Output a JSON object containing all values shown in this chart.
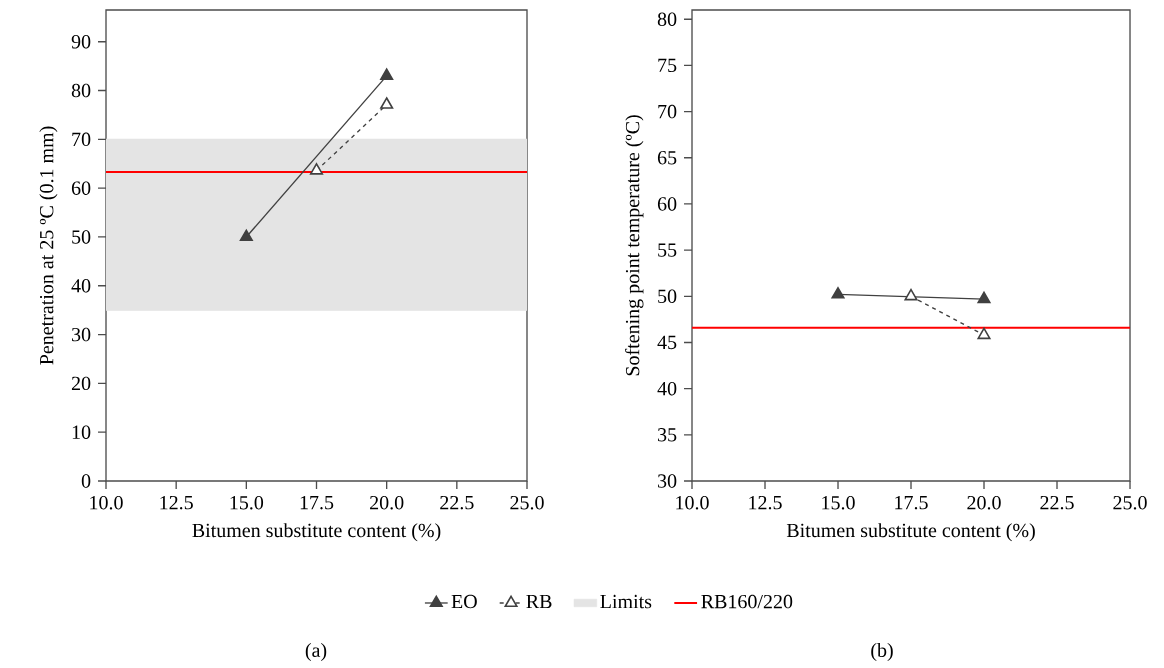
{
  "chart_data": [
    {
      "type": "line",
      "xlabel": "Bitumen substitute content (%)",
      "ylabel": "Penetration at 25 ºC (0.1 mm)",
      "xlim": [
        10,
        25
      ],
      "ylim": [
        0,
        96.5
      ],
      "xticks": [
        {
          "value": 10,
          "label": "10.0"
        },
        {
          "value": 12.5,
          "label": "12.5"
        },
        {
          "value": 15,
          "label": "15.0"
        },
        {
          "value": 17.5,
          "label": "17.5"
        },
        {
          "value": 20,
          "label": "20.0"
        },
        {
          "value": 22.5,
          "label": "22.5"
        },
        {
          "value": 25,
          "label": "25.0"
        }
      ],
      "yticks": [
        0,
        10,
        20,
        30,
        40,
        50,
        60,
        70,
        80,
        90
      ],
      "marker": "triangle",
      "legend": "bottom",
      "series": [
        {
          "name": "EO",
          "color": "#404040",
          "x": [
            15,
            20
          ],
          "values": [
            50,
            83
          ],
          "line_style": "solid"
        },
        {
          "name": "RB",
          "color": "#404040",
          "x": [
            17.5,
            20
          ],
          "values": [
            63.6,
            77.1
          ],
          "line_style": "dashed"
        }
      ],
      "bands": [
        {
          "axis": "y",
          "from": 35,
          "to": 70,
          "label": "Limits",
          "color": "#e4e4e4"
        }
      ],
      "ref_lines": [
        {
          "axis": "y",
          "value": 63.3,
          "label": "RB160/220",
          "color": "#ff0000"
        }
      ],
      "annotations": [
        "(a)"
      ]
    },
    {
      "type": "line",
      "xlabel": "Bitumen substitute content (%)",
      "ylabel": "Softening point temperature (ºC)",
      "xlim": [
        10,
        25
      ],
      "ylim": [
        30,
        81
      ],
      "xticks": [
        {
          "value": 10,
          "label": "10.0"
        },
        {
          "value": 12.5,
          "label": "12.5"
        },
        {
          "value": 15,
          "label": "15.0"
        },
        {
          "value": 17.5,
          "label": "17.5"
        },
        {
          "value": 20,
          "label": "20.0"
        },
        {
          "value": 22.5,
          "label": "22.5"
        },
        {
          "value": 25,
          "label": "25.0"
        }
      ],
      "yticks": [
        30,
        35,
        40,
        45,
        50,
        55,
        60,
        65,
        70,
        75,
        80
      ],
      "marker": "triangle",
      "series": [
        {
          "color": "#404040",
          "x": [
            15,
            20
          ],
          "values": [
            50.2,
            49.7
          ],
          "line_style": "solid"
        },
        {
          "color": "#404040",
          "x": [
            17.5,
            20
          ],
          "values": [
            50.0,
            45.8
          ],
          "line_style": "dashed"
        }
      ],
      "ref_lines": [
        {
          "axis": "y",
          "value": 46.6,
          "color": "#ff0000"
        }
      ],
      "annotations": [
        "(b)"
      ]
    }
  ]
}
